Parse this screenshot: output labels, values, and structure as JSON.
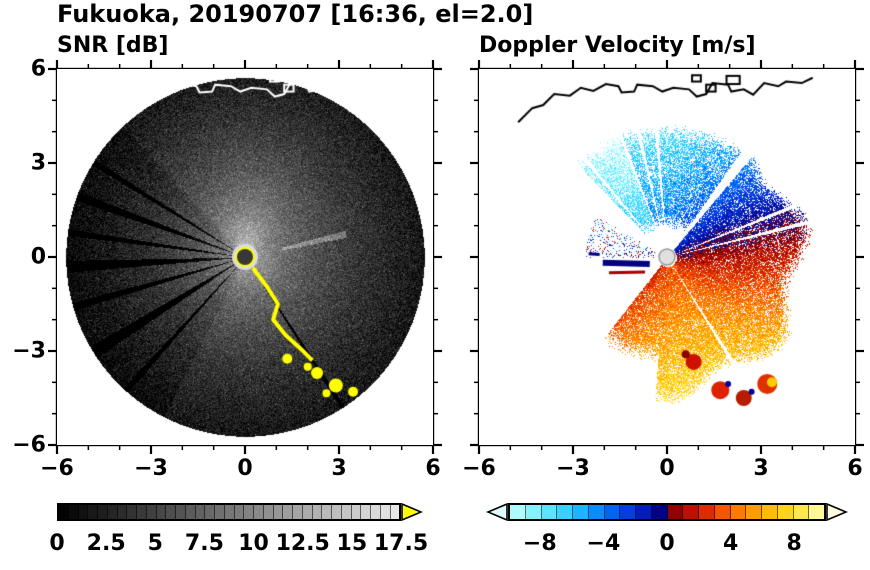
{
  "header": {
    "title": "Fukuoka, 20190707 [16:36, el=2.0]"
  },
  "colors": {
    "background": "#ffffff",
    "text": "#000000",
    "snr_over_color": "#ffff00",
    "coast_snr": "#ffffff",
    "coast_doppler": "#000000"
  },
  "snr_panel": {
    "title": "SNR [dB]",
    "y_tick_labels": [
      "6",
      "3",
      "0",
      "−3",
      "−6"
    ],
    "x_tick_labels": [
      "−6",
      "−3",
      "0",
      "3",
      "6"
    ],
    "colorbar_tick_labels": [
      "0",
      "2.5",
      "5",
      "7.5",
      "10",
      "12.5",
      "15",
      "17.5"
    ]
  },
  "doppler_panel": {
    "title": "Doppler Velocity [m/s]",
    "x_tick_labels": [
      "−6",
      "−3",
      "0",
      "3",
      "6"
    ],
    "colorbar_tick_labels": [
      "−8",
      "−4",
      "0",
      "4",
      "8"
    ]
  },
  "chart_data": [
    {
      "type": "heatmap",
      "title": "SNR [dB]",
      "xlabel": "",
      "ylabel": "",
      "xlim": [
        -6,
        6
      ],
      "ylim": [
        -6,
        6
      ],
      "x_ticks": [
        -6,
        -3,
        0,
        3,
        6
      ],
      "y_ticks": [
        -6,
        -3,
        0,
        3,
        6
      ],
      "minor_tick_step": 1,
      "scan_radius": 5.72,
      "colorbar": {
        "label": "SNR [dB]",
        "range": [
          0,
          17.5
        ],
        "ticks": [
          0,
          2.5,
          5,
          7.5,
          10,
          12.5,
          15,
          17.5
        ],
        "segment_step": 0.5,
        "colormap": "grayscale black to light gray",
        "over_color": "#ffff00"
      },
      "notes": "Radar PPI disk centered at origin; bright high-SNR core at center fading to dark speckle at range; dark blocked spoke sectors toward the west; strong yellow (>17.5 dB) echo arc and blobs in the south-southeast; white coastline overlay along the top"
    },
    {
      "type": "heatmap",
      "title": "Doppler Velocity [m/s]",
      "xlabel": "",
      "ylabel": "",
      "xlim": [
        -6,
        6
      ],
      "ylim": [
        -6,
        6
      ],
      "x_ticks": [
        -6,
        -3,
        0,
        3,
        6
      ],
      "y_ticks": [
        -6,
        -3,
        0,
        3,
        6
      ],
      "minor_tick_step": 1,
      "scan_radius": 4.9,
      "colorbar": {
        "label": "Doppler Velocity [m/s]",
        "range": [
          -10,
          10
        ],
        "ticks": [
          -8,
          -4,
          0,
          4,
          8
        ],
        "segment_step": 1,
        "colormap": "cyan-blue-navy for negative (toward radar), dark red-orange-yellow for positive (away)"
      },
      "notes": "Echo only where rain present: cyan/blue negative velocities in the north to northwest fan, red/orange/yellow positive velocities in the large east-to-south fan, navy clutter streaks west of center, detached red blobs to the south, black coastline overlay along the top; zero-isodop white gap along ENE"
    }
  ]
}
